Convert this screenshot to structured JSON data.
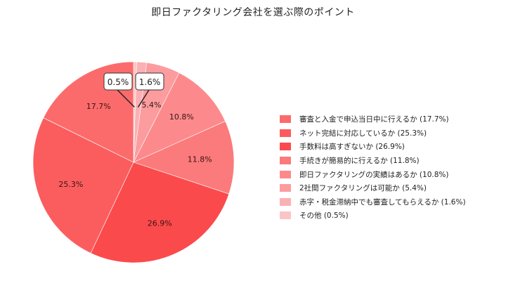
{
  "title": "即日ファクタリング会社を選ぶ際のポイント",
  "chart_data": {
    "type": "pie",
    "title": "即日ファクタリング会社を選ぶ際のポイント",
    "start_angle": "12 o'clock",
    "direction": "clockwise",
    "slices_in_draw_order": [
      {
        "label": "その他",
        "value": 0.5,
        "color": "#fbc5c7",
        "data_label": "0.5%",
        "callout": true
      },
      {
        "label": "赤字・税金滞納中でも審査してもらえるか",
        "value": 1.6,
        "color": "#fbb0b3",
        "data_label": "1.6%",
        "callout": true
      },
      {
        "label": "2社間ファクタリングは可能か",
        "value": 5.4,
        "color": "#fc9c9e",
        "data_label": "5.4%",
        "callout": false
      },
      {
        "label": "即日ファクタリングの実績はあるか",
        "value": 10.8,
        "color": "#fc8a8c",
        "data_label": "10.8%",
        "callout": false
      },
      {
        "label": "手続きが簡易的に行えるか",
        "value": 11.8,
        "color": "#fb7a7b",
        "data_label": "11.8%",
        "callout": false
      },
      {
        "label": "手数料は高すぎないか",
        "value": 26.9,
        "color": "#fb4a4c",
        "data_label": "26.9%",
        "callout": false
      },
      {
        "label": "ネット完結に対応しているか",
        "value": 25.3,
        "color": "#fb5d5e",
        "data_label": "25.3%",
        "callout": false
      },
      {
        "label": "審査と入金で申込当日中に行えるか",
        "value": 17.7,
        "color": "#fc6b6b",
        "data_label": "17.7%",
        "callout": false
      }
    ],
    "legend": [
      {
        "label": "審査と入金で申込当日中に行えるか (17.7%)",
        "color": "#fc6b6b"
      },
      {
        "label": "ネット完結に対応しているか (25.3%)",
        "color": "#fb5d5e"
      },
      {
        "label": "手数料は高すぎないか (26.9%)",
        "color": "#fb4a4c"
      },
      {
        "label": "手続きが簡易的に行えるか (11.8%)",
        "color": "#fb7a7b"
      },
      {
        "label": "即日ファクタリングの実績はあるか (10.8%)",
        "color": "#fc8a8c"
      },
      {
        "label": "2社間ファクタリングは可能か (5.4%)",
        "color": "#fc9c9e"
      },
      {
        "label": "赤字・税金滞納中でも審査してもらえるか (1.6%)",
        "color": "#fbb0b3"
      },
      {
        "label": "その他 (0.5%)",
        "color": "#fbc5c7"
      }
    ],
    "legend_position": "right"
  }
}
